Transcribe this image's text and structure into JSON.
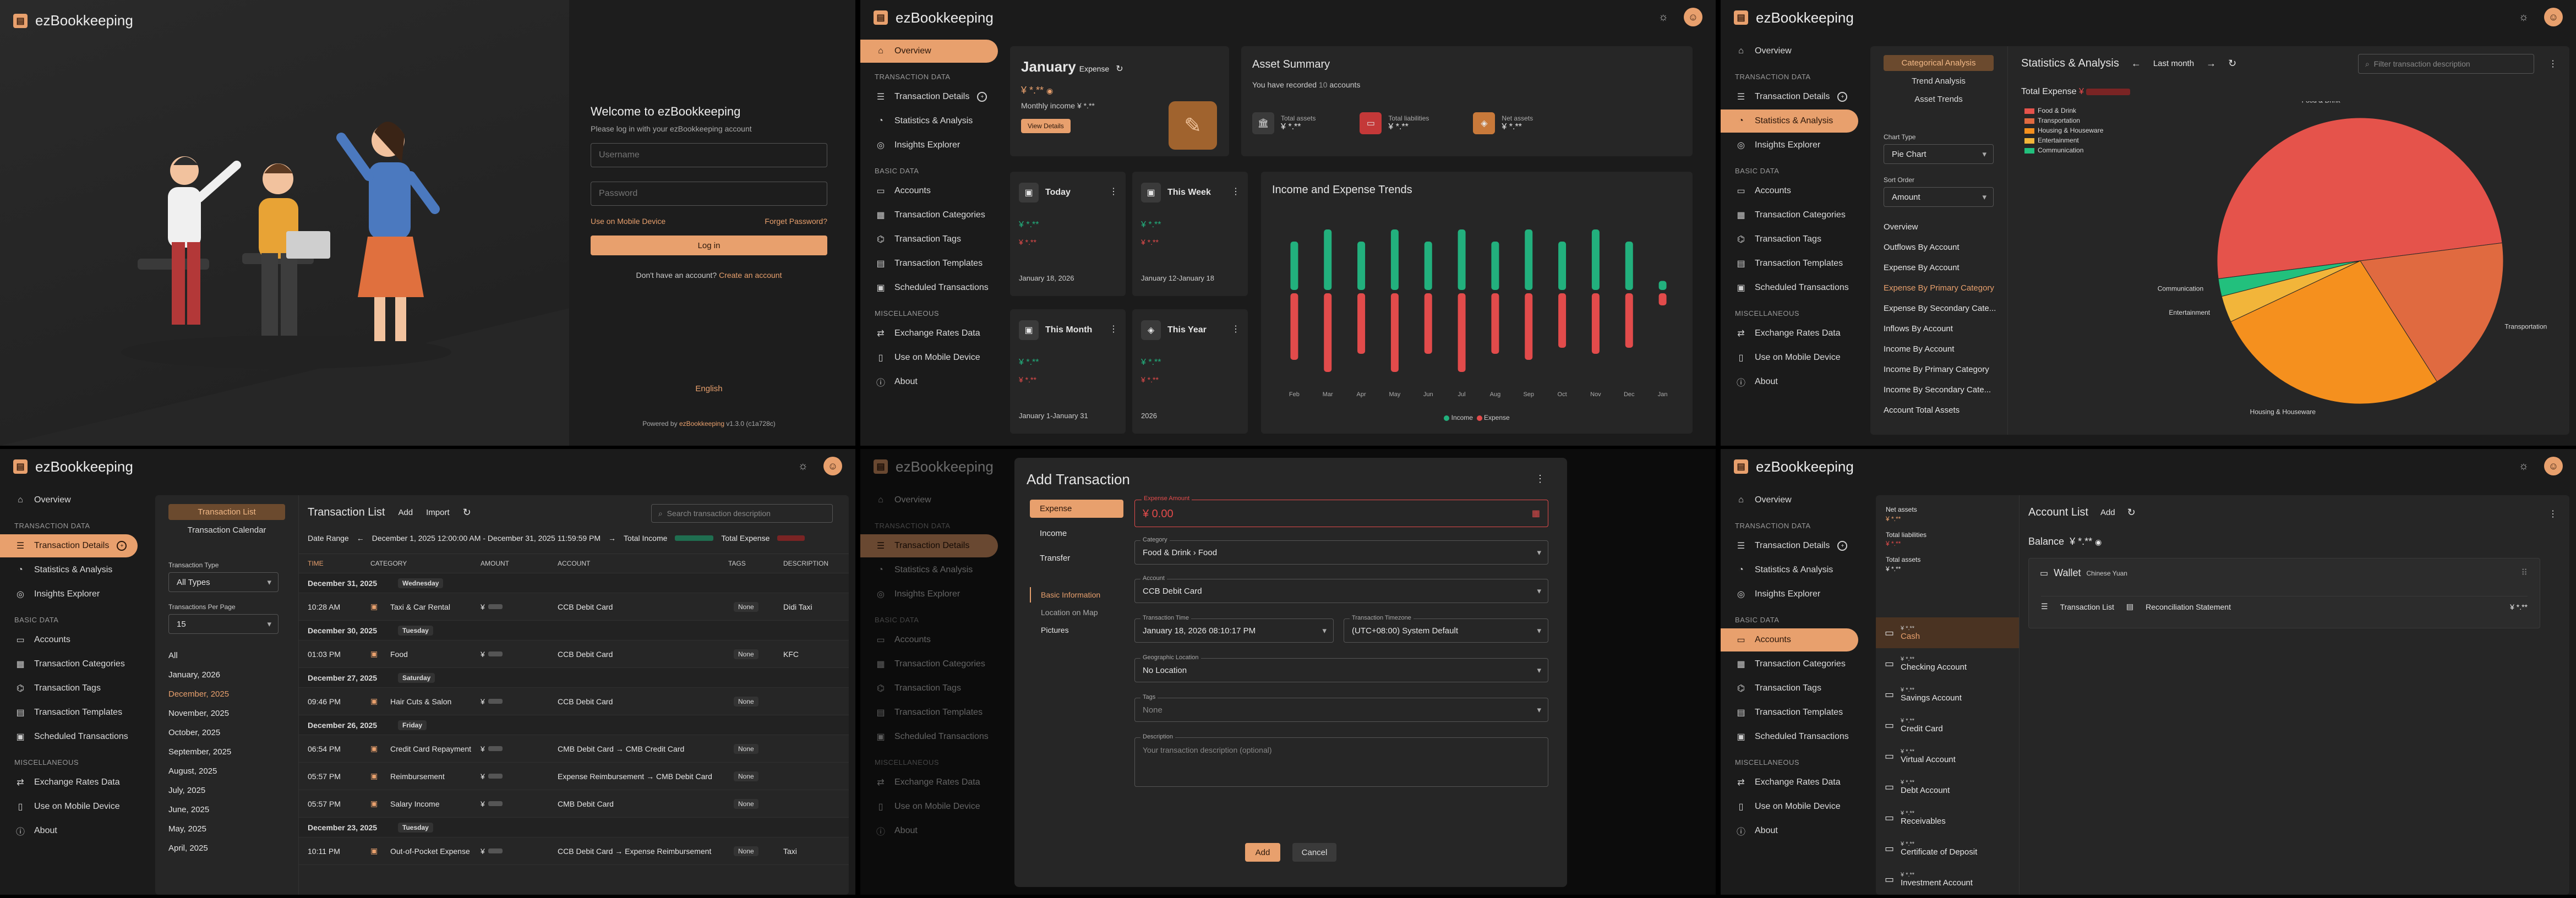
{
  "brand": "ezBookkeeping",
  "nav": {
    "overview": "Overview",
    "section_tx": "TRANSACTION DATA",
    "tx_details": "Transaction Details",
    "stats": "Statistics & Analysis",
    "insights": "Insights Explorer",
    "section_basic": "BASIC DATA",
    "accounts": "Accounts",
    "categories": "Transaction Categories",
    "tags": "Transaction Tags",
    "templates": "Transaction Templates",
    "scheduled": "Scheduled Transactions",
    "section_misc": "MISCELLANEOUS",
    "exchange": "Exchange Rates Data",
    "mobile": "Use on Mobile Device",
    "about": "About"
  },
  "login": {
    "welcome": "Welcome to ezBookkeeping",
    "subtitle": "Please log in with your ezBookkeeping account",
    "username_ph": "Username",
    "password_ph": "Password",
    "mobile_link": "Use on Mobile Device",
    "forgot": "Forget Password?",
    "login_btn": "Log in",
    "no_account": "Don't have an account?",
    "create": "Create an account",
    "language": "English",
    "powered": "Powered by",
    "powered_link": "ezBookkeeping",
    "version": "v1.3.0 (c1a728c)"
  },
  "overview": {
    "month": "January",
    "expense": "Expense",
    "expense_val": "¥ *.**",
    "monthly_income": "Monthly income",
    "monthly_income_val": "¥ *.**",
    "view_details": "View Details",
    "asset_summary": "Asset Summary",
    "recorded": "You have recorded",
    "recorded_count": "10",
    "recorded_unit": "accounts",
    "total_assets": "Total assets",
    "total_assets_val": "¥ *.**",
    "total_liab": "Total liabilities",
    "total_liab_val": "¥ *.**",
    "net_assets": "Net assets",
    "net_assets_val": "¥ *.**",
    "periods": [
      {
        "title": "Today",
        "income": "¥ *.**",
        "expense": "¥ *.**",
        "range": "January 18, 2026"
      },
      {
        "title": "This Week",
        "income": "¥ *.**",
        "expense": "¥ *.**",
        "range": "January 12-January 18"
      },
      {
        "title": "This Month",
        "income": "¥ *.**",
        "expense": "¥ *.**",
        "range": "January 1-January 31"
      },
      {
        "title": "This Year",
        "income": "¥ *.**",
        "expense": "¥ *.**",
        "range": "2026"
      }
    ],
    "trends_title": "Income and Expense Trends",
    "legend_income": "Income",
    "legend_expense": "Expense"
  },
  "chart_data": {
    "type": "bar",
    "title": "Income and Expense Trends",
    "categories": [
      "Feb",
      "Mar",
      "Apr",
      "May",
      "Jun",
      "Jul",
      "Aug",
      "Sep",
      "Oct",
      "Nov",
      "Dec",
      "Jan"
    ],
    "series": [
      {
        "name": "Income",
        "values": [
          8,
          10,
          8,
          10,
          8,
          10,
          8,
          10,
          8,
          10,
          8,
          1.5
        ]
      },
      {
        "name": "Expense",
        "values": [
          -11,
          -13,
          -10,
          -13,
          -10,
          -13,
          -10,
          -11,
          -9,
          -10,
          -9,
          -2
        ]
      }
    ],
    "colors": {
      "income": "#22b07d",
      "expense": "#e24b4b"
    }
  },
  "stats": {
    "tabs": [
      "Categorical Analysis",
      "Trend Analysis",
      "Asset Trends"
    ],
    "title": "Statistics & Analysis",
    "period": "Last month",
    "filter_ph": "Filter transaction description",
    "total_expense": "Total Expense",
    "total_expense_val": "¥",
    "chart_type_label": "Chart Type",
    "chart_type": "Pie Chart",
    "sort_label": "Sort Order",
    "sort": "Amount",
    "analysis_items": [
      "Overview",
      "Outflows By Account",
      "Expense By Account",
      "Expense By Primary Category",
      "Expense By Secondary Cate...",
      "Inflows By Account",
      "Income By Account",
      "Income By Primary Category",
      "Income By Secondary Cate...",
      "Account Total Assets"
    ],
    "pie": {
      "type": "pie",
      "categories": [
        "Food & Drink",
        "Transportation",
        "Housing & Houseware",
        "Entertainment",
        "Communication"
      ],
      "values": [
        50,
        18,
        27,
        3,
        2
      ],
      "colors": [
        "#e5534b",
        "#e06a40",
        "#f5901e",
        "#f2b53a",
        "#22c07d"
      ]
    }
  },
  "txlist": {
    "tabs": [
      "Transaction List",
      "Transaction Calendar"
    ],
    "type_label": "Transaction Type",
    "type_val": "All Types",
    "per_page_label": "Transactions Per Page",
    "per_page_val": "15",
    "months": [
      "All",
      "January, 2026",
      "December, 2025",
      "November, 2025",
      "October, 2025",
      "September, 2025",
      "August, 2025",
      "July, 2025",
      "June, 2025",
      "May, 2025",
      "April, 2025"
    ],
    "title": "Transaction List",
    "add": "Add",
    "import": "Import",
    "search_ph": "Search transaction description",
    "date_range_label": "Date Range",
    "date_range": "December 1, 2025 12:00:00 AM - December 31, 2025 11:59:59 PM",
    "total_income": "Total Income",
    "total_expense": "Total Expense",
    "cols": [
      "TIME",
      "CATEGORY",
      "AMOUNT",
      "ACCOUNT",
      "TAGS",
      "DESCRIPTION"
    ],
    "rows": [
      {
        "kind": "date",
        "date": "December 31, 2025",
        "dow": "Wednesday"
      },
      {
        "kind": "tx",
        "time": "10:28 AM",
        "cat": "Taxi & Car Rental",
        "amt": "¥",
        "acct": "CCB Debit Card",
        "tags": "None",
        "desc": "Didi Taxi"
      },
      {
        "kind": "date",
        "date": "December 30, 2025",
        "dow": "Tuesday"
      },
      {
        "kind": "tx",
        "time": "01:03 PM",
        "cat": "Food",
        "amt": "¥",
        "acct": "CCB Debit Card",
        "tags": "None",
        "desc": "KFC"
      },
      {
        "kind": "date",
        "date": "December 27, 2025",
        "dow": "Saturday"
      },
      {
        "kind": "tx",
        "time": "09:46 PM",
        "cat": "Hair Cuts & Salon",
        "amt": "¥",
        "acct": "CCB Debit Card",
        "tags": "None",
        "desc": ""
      },
      {
        "kind": "date",
        "date": "December 26, 2025",
        "dow": "Friday"
      },
      {
        "kind": "tx",
        "time": "06:54 PM",
        "cat": "Credit Card Repayment",
        "amt": "¥",
        "acct": "CMB Debit Card → CMB Credit Card",
        "tags": "None",
        "desc": ""
      },
      {
        "kind": "tx",
        "time": "05:57 PM",
        "cat": "Reimbursement",
        "amt": "¥",
        "acct": "Expense Reimbursement → CMB Debit Card",
        "tags": "None",
        "desc": ""
      },
      {
        "kind": "tx",
        "time": "05:57 PM",
        "cat": "Salary Income",
        "amt": "¥",
        "acct": "CMB Debit Card",
        "tags": "None",
        "desc": ""
      },
      {
        "kind": "date",
        "date": "December 23, 2025",
        "dow": "Tuesday"
      },
      {
        "kind": "tx",
        "time": "10:11 PM",
        "cat": "Out-of-Pocket Expense",
        "amt": "¥",
        "acct": "CCB Debit Card → Expense Reimbursement",
        "tags": "None",
        "desc": "Taxi"
      }
    ]
  },
  "addtx": {
    "title": "Add Transaction",
    "types": [
      "Expense",
      "Income",
      "Transfer"
    ],
    "sub_tabs": [
      "Basic Information",
      "Location on Map",
      "Pictures"
    ],
    "amount_label": "Expense Amount",
    "amount": "¥ 0.00",
    "category_label": "Category",
    "category": "Food & Drink",
    "subcategory": "Food",
    "account_label": "Account",
    "account": "CCB Debit Card",
    "time_label": "Transaction Time",
    "time": "January 18, 2026 08:10:17 PM",
    "tz_label": "Transaction Timezone",
    "tz": "(UTC+08:00) System Default",
    "geo_label": "Geographic Location",
    "geo": "No Location",
    "tags_label": "Tags",
    "tags": "None",
    "desc_label": "Description",
    "desc_ph": "Your transaction description (optional)",
    "add_btn": "Add",
    "cancel_btn": "Cancel"
  },
  "accounts": {
    "net_assets": "Net assets",
    "net_assets_val": "¥ *.**",
    "total_liab": "Total liabilities",
    "total_liab_val": "¥ *.**",
    "total_assets": "Total assets",
    "total_assets_val": "¥ *.**",
    "title": "Account List",
    "add": "Add",
    "balance_label": "Balance",
    "balance": "¥ *.**",
    "wallet": "Wallet",
    "wallet_currency": "Chinese Yuan",
    "tx_list": "Transaction List",
    "reconcile": "Reconciliation Statement",
    "wallet_val": "¥ *.**",
    "types": [
      {
        "val": "¥ *.**",
        "name": "Cash"
      },
      {
        "val": "¥ *.**",
        "name": "Checking Account"
      },
      {
        "val": "¥ *.**",
        "name": "Savings Account"
      },
      {
        "val": "¥ *.**",
        "name": "Credit Card"
      },
      {
        "val": "¥ *.**",
        "name": "Virtual Account"
      },
      {
        "val": "¥ *.**",
        "name": "Debt Account"
      },
      {
        "val": "¥ *.**",
        "name": "Receivables"
      },
      {
        "val": "¥ *.**",
        "name": "Certificate of Deposit"
      },
      {
        "val": "¥ *.**",
        "name": "Investment Account"
      }
    ]
  }
}
